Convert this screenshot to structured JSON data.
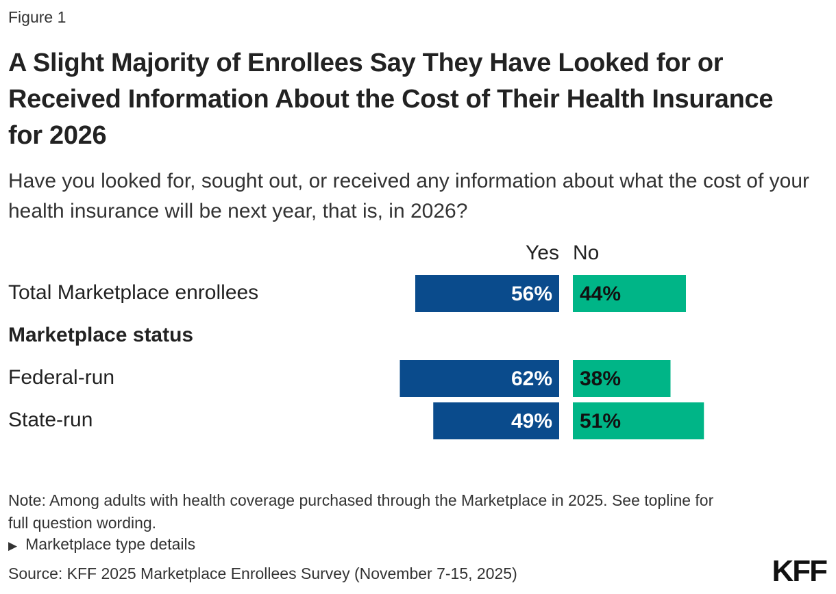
{
  "chart_data": {
    "type": "diverging-bar",
    "figure_label": "Figure 1",
    "title": "A Slight Majority of Enrollees Say They Have Looked for or Received Information About the Cost of Their Health Insurance for 2026",
    "subtitle": "Have you looked for, sought out, or received any information about what the cost of your health insurance will be next year, that is, in 2026?",
    "categories": [
      "Total Marketplace enrollees",
      "Federal-run",
      "State-run"
    ],
    "group_header": "Marketplace status",
    "series": [
      {
        "name": "Yes",
        "color": "#0a4b8c",
        "values": [
          56,
          62,
          49
        ],
        "value_labels": [
          "56%",
          "62%",
          "49%"
        ]
      },
      {
        "name": "No",
        "color": "#00b587",
        "values": [
          44,
          38,
          51
        ],
        "value_labels": [
          "44%",
          "38%",
          "51%"
        ]
      }
    ],
    "note": "Note: Among adults with health coverage purchased through the Marketplace in 2025. See topline for full question wording.",
    "details_toggle": "Marketplace type details",
    "source": "Source: KFF 2025 Marketplace Enrollees Survey (November 7-15, 2025)",
    "logo": "KFF"
  }
}
